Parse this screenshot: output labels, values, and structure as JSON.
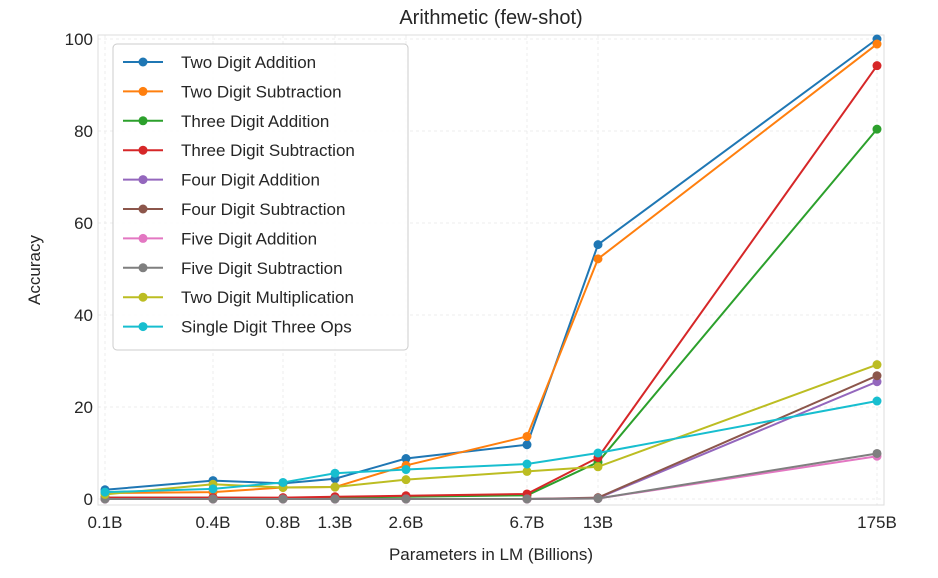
{
  "chart_data": {
    "type": "line",
    "title": "Arithmetic (few-shot)",
    "xlabel": "Parameters in LM (Billions)",
    "ylabel": "Accuracy",
    "categories": [
      "0.1B",
      "0.4B",
      "0.8B",
      "1.3B",
      "2.6B",
      "6.7B",
      "13B",
      "175B"
    ],
    "ylim": [
      0,
      100
    ],
    "yticks": [
      "0",
      "20",
      "40",
      "60",
      "80",
      "100"
    ],
    "grid": true,
    "legend_position": "top-left",
    "series": [
      {
        "name": "Two Digit Addition",
        "color": "#1f77b4",
        "values": [
          2.0,
          4.0,
          3.4,
          4.4,
          8.8,
          11.8,
          55.3,
          100.0
        ]
      },
      {
        "name": "Two Digit Subtraction",
        "color": "#ff7f0e",
        "values": [
          1.3,
          1.5,
          2.5,
          2.6,
          7.3,
          13.6,
          52.2,
          98.9
        ]
      },
      {
        "name": "Three Digit Addition",
        "color": "#2ca02c",
        "values": [
          0.3,
          0.3,
          0.2,
          0.3,
          0.5,
          0.8,
          8.0,
          80.4
        ]
      },
      {
        "name": "Three Digit Subtraction",
        "color": "#d62728",
        "values": [
          0.3,
          0.3,
          0.3,
          0.5,
          0.7,
          1.1,
          9.0,
          94.2
        ]
      },
      {
        "name": "Four Digit Addition",
        "color": "#9467bd",
        "values": [
          0.0,
          0.0,
          0.0,
          0.0,
          0.0,
          0.0,
          0.2,
          25.5
        ]
      },
      {
        "name": "Four Digit Subtraction",
        "color": "#8c564b",
        "values": [
          0.0,
          0.0,
          0.0,
          0.0,
          0.0,
          0.0,
          0.3,
          26.8
        ]
      },
      {
        "name": "Five Digit Addition",
        "color": "#e377c2",
        "values": [
          0.0,
          0.0,
          0.0,
          0.0,
          0.0,
          0.0,
          0.1,
          9.3
        ]
      },
      {
        "name": "Five Digit Subtraction",
        "color": "#7f7f7f",
        "values": [
          0.0,
          0.0,
          0.0,
          0.0,
          0.0,
          0.0,
          0.1,
          9.9
        ]
      },
      {
        "name": "Two Digit Multiplication",
        "color": "#bcbd22",
        "values": [
          1.0,
          3.2,
          2.5,
          2.6,
          4.2,
          6.0,
          7.0,
          29.2
        ]
      },
      {
        "name": "Single Digit Three Ops",
        "color": "#17becf",
        "values": [
          1.5,
          2.2,
          3.6,
          5.6,
          6.4,
          7.6,
          10.0,
          21.3
        ]
      }
    ]
  }
}
